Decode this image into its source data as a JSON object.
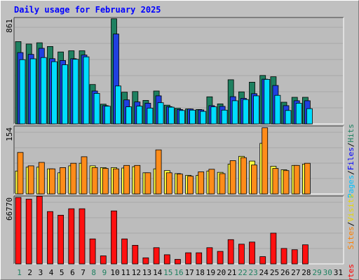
{
  "title": "Daily usage for February 2025",
  "colors": {
    "background": "#c0c0c0",
    "plot": "#bcbcbc",
    "hits": "#1e8060",
    "files": "#2040e0",
    "pages": "#00ddff",
    "visits": "#ffff40",
    "sites": "#ff8c1a",
    "kbytes": "#ff1010",
    "weekend_label": "#1e8060",
    "weekday_label": "#000000",
    "legend_hits": "#1e8060",
    "legend_files": "#0000ff",
    "legend_pages": "#00c0ff",
    "legend_visits": "#e8d800",
    "legend_sites": "#ff8000",
    "legend_kbytes": "#ff0000",
    "ymax": "#000000"
  },
  "chart_data": [
    {
      "type": "bar",
      "panel": "hits-files-pages",
      "ymax_label": "861",
      "ylim": [
        0,
        861
      ],
      "legend": [
        "Pages",
        "Files",
        "Hits"
      ],
      "legend_sep": "/",
      "categories": [
        "1",
        "2",
        "3",
        "4",
        "5",
        "6",
        "7",
        "8",
        "9",
        "10",
        "11",
        "12",
        "13",
        "14",
        "15",
        "16",
        "17",
        "18",
        "19",
        "20",
        "21",
        "22",
        "23",
        "24",
        "25",
        "26",
        "27",
        "28",
        "29",
        "30",
        "31"
      ],
      "series": [
        {
          "name": "Hits",
          "values": [
            675,
            655,
            665,
            635,
            590,
            600,
            600,
            323,
            162,
            862,
            260,
            265,
            193,
            270,
            154,
            128,
            123,
            118,
            222,
            164,
            362,
            263,
            342,
            397,
            387,
            178,
            218,
            218,
            null,
            null,
            null
          ]
        },
        {
          "name": "Files",
          "values": [
            585,
            570,
            620,
            535,
            520,
            535,
            565,
            270,
            150,
            737,
            197,
            180,
            170,
            230,
            142,
            118,
            122,
            115,
            150,
            144,
            223,
            210,
            248,
            367,
            315,
            150,
            190,
            190,
            null,
            null,
            null
          ]
        },
        {
          "name": "Pages",
          "values": [
            527,
            534,
            544,
            510,
            485,
            530,
            550,
            250,
            145,
            311,
            140,
            146,
            130,
            174,
            137,
            110,
            113,
            103,
            140,
            113,
            190,
            200,
            230,
            365,
            234,
            110,
            170,
            125,
            null,
            null,
            null
          ]
        }
      ]
    },
    {
      "type": "bar",
      "panel": "visits-sites",
      "ymax_label": "154",
      "ylim": [
        0,
        154
      ],
      "legend": [
        "Sites",
        "Visits"
      ],
      "legend_sep": "/",
      "categories": [
        "1",
        "2",
        "3",
        "4",
        "5",
        "6",
        "7",
        "8",
        "9",
        "10",
        "11",
        "12",
        "13",
        "14",
        "15",
        "16",
        "17",
        "18",
        "19",
        "20",
        "21",
        "22",
        "23",
        "24",
        "25",
        "26",
        "27",
        "28",
        "29",
        "30",
        "31"
      ],
      "series": [
        {
          "name": "Visits",
          "values": [
            53,
            62,
            62,
            58,
            49,
            65,
            71,
            65,
            61,
            61,
            60,
            63,
            49,
            58,
            54,
            47,
            43,
            43,
            53,
            50,
            69,
            87,
            76,
            117,
            64,
            56,
            66,
            69,
            null,
            null,
            null
          ]
        },
        {
          "name": "Sites",
          "values": [
            96,
            65,
            73,
            58,
            61,
            71,
            86,
            61,
            59,
            58,
            66,
            66,
            49,
            102,
            49,
            46,
            41,
            51,
            57,
            47,
            77,
            84,
            67,
            153,
            59,
            54,
            66,
            71,
            null,
            null,
            null
          ]
        }
      ]
    },
    {
      "type": "bar",
      "panel": "kbytes",
      "ymax_label": "66770",
      "ylim": [
        0,
        66770
      ],
      "legend": [
        "KBytes"
      ],
      "categories": [
        "1",
        "2",
        "3",
        "4",
        "5",
        "6",
        "7",
        "8",
        "9",
        "10",
        "11",
        "12",
        "13",
        "14",
        "15",
        "16",
        "17",
        "18",
        "19",
        "20",
        "21",
        "22",
        "23",
        "24",
        "25",
        "26",
        "27",
        "28",
        "29",
        "30",
        "31"
      ],
      "series": [
        {
          "name": "KBytes",
          "values": [
            66700,
            65000,
            67900,
            52600,
            48900,
            55400,
            55400,
            25100,
            8100,
            53200,
            25100,
            18700,
            6100,
            16300,
            9200,
            4600,
            11200,
            11200,
            16300,
            12600,
            24400,
            19800,
            21900,
            7300,
            30900,
            15500,
            14300,
            19200,
            null,
            null,
            null
          ]
        }
      ]
    }
  ],
  "x_label_weekend": [
    1,
    8,
    9,
    15,
    16,
    22,
    23,
    29,
    30
  ]
}
